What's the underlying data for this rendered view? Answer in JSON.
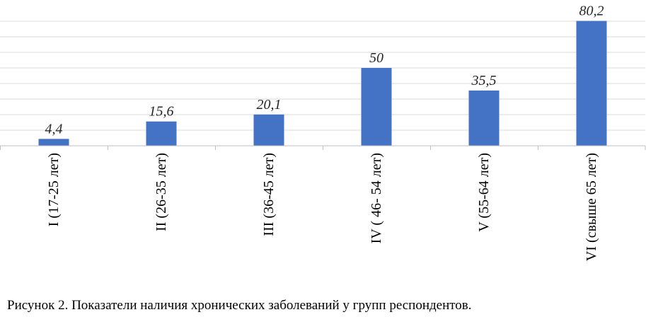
{
  "caption": "Рисунок 2. Показатели наличия хронических заболеваний у групп респондентов.",
  "chart_data": {
    "type": "bar",
    "categories": [
      "I (17-25 лет)",
      "II (26-35 лет)",
      "III (36-45 лет)",
      "IV ( 46- 54 лет)",
      "V (55-64 лет)",
      "VI (свыше 65 лет)"
    ],
    "values": [
      4.4,
      15.6,
      20.1,
      50,
      35.5,
      80.2
    ],
    "data_labels": [
      "4,4",
      "15,6",
      "20,1",
      "50",
      "35,5",
      "80,2"
    ],
    "title": "",
    "xlabel": "",
    "ylabel": "",
    "ylim": [
      0,
      80
    ],
    "grid": true,
    "bar_color": "#4472c4",
    "grid_color": "#d9d9d9",
    "axis_color": "#bfbfbf"
  }
}
